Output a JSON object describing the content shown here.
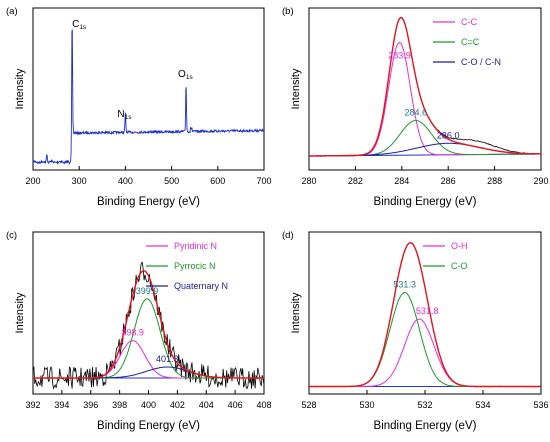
{
  "figure": {
    "panels": [
      "(a)",
      "(b)",
      "(c)",
      "(d)"
    ],
    "xlabel": "Binding Energy (eV)",
    "ylabel": "Intensity"
  },
  "colors": {
    "raw": "#000000",
    "fit_total": "#e8141c",
    "baseline": "#2432c8",
    "survey": "#1d2ec9",
    "magenta": "#ee2ad8",
    "green": "#1d9a2a",
    "navy": "#1a1f9a",
    "teal_label": "#1f7a8a"
  },
  "chart_data": [
    {
      "panel": "(a)",
      "type": "line",
      "xlabel": "Binding Energy (eV)",
      "ylabel": "Intensity",
      "xlim": [
        200,
        700
      ],
      "xticks": [
        200,
        300,
        400,
        500,
        600,
        700
      ],
      "peaks": [
        {
          "name": "C1s",
          "label_main": "C",
          "label_sub": "1s",
          "x": 284.6,
          "rel_height": 1.0
        },
        {
          "name": "N1s",
          "label_main": "N",
          "label_sub": "1s",
          "x": 399.9,
          "rel_height": 0.17
        },
        {
          "name": "O1s",
          "label_main": "O",
          "label_sub": "1s",
          "x": 531.3,
          "rel_height": 0.44
        }
      ]
    },
    {
      "panel": "(b)",
      "type": "line",
      "xlabel": "Binding Energy (eV)",
      "ylabel": "Intensity",
      "xlim": [
        280,
        290
      ],
      "xticks": [
        280,
        282,
        284,
        286,
        288,
        290
      ],
      "legend_position": "top-right",
      "series": [
        {
          "name": "C-C",
          "center": 283.9,
          "label": "283.9",
          "rel_amp": 0.88,
          "fwhm": 1.1,
          "color": "magenta"
        },
        {
          "name": "C=C",
          "center": 284.6,
          "label": "284.6",
          "rel_amp": 0.27,
          "fwhm": 1.6,
          "color": "green"
        },
        {
          "name": "C-O / C-N",
          "center": 286.0,
          "label": "286.0",
          "rel_amp": 0.09,
          "fwhm": 3.2,
          "color": "navy"
        }
      ]
    },
    {
      "panel": "(c)",
      "type": "line",
      "xlabel": "Binding Energy (eV)",
      "ylabel": "Intensity",
      "xlim": [
        392,
        408
      ],
      "xticks": [
        392,
        394,
        396,
        398,
        400,
        402,
        404,
        406,
        408
      ],
      "legend_position": "top-right",
      "series": [
        {
          "name": "Pyridinic N",
          "center": 398.9,
          "label": "398.9",
          "rel_amp": 0.34,
          "fwhm": 2.0,
          "color": "magenta"
        },
        {
          "name": "Pyrrocic N",
          "center": 399.9,
          "label": "399.9",
          "rel_amp": 0.72,
          "fwhm": 2.1,
          "color": "green"
        },
        {
          "name": "Quaternary N",
          "center": 401.3,
          "label": "401.3",
          "rel_amp": 0.1,
          "fwhm": 3.4,
          "color": "navy"
        }
      ]
    },
    {
      "panel": "(d)",
      "type": "line",
      "xlabel": "Binding Energy (eV)",
      "ylabel": "Intensity",
      "xlim": [
        528,
        536
      ],
      "xticks": [
        528,
        530,
        532,
        534,
        536
      ],
      "legend_position": "top-right",
      "series": [
        {
          "name": "O-H",
          "center": 531.8,
          "label": "531.8",
          "rel_amp": 0.56,
          "fwhm": 1.2,
          "color": "magenta"
        },
        {
          "name": "C-O",
          "center": 531.3,
          "label": "531.3",
          "rel_amp": 0.78,
          "fwhm": 1.2,
          "color": "green"
        }
      ]
    }
  ]
}
